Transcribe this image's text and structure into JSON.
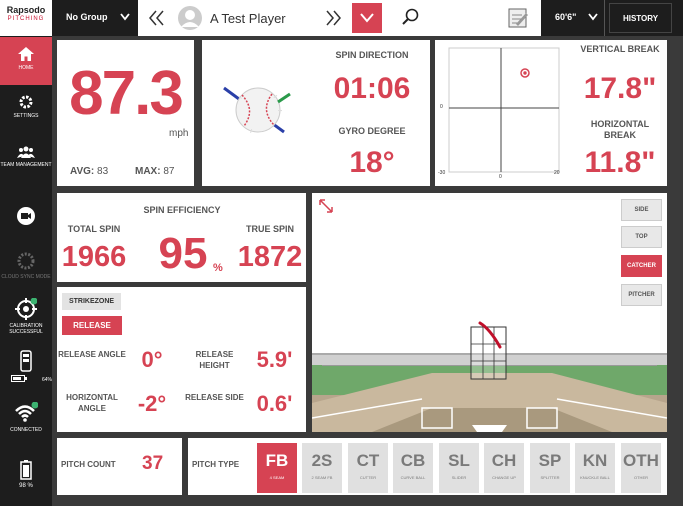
{
  "brand": {
    "name": "Rapsodo",
    "sub": "PITCHING"
  },
  "sidebar": {
    "items": [
      {
        "label": "HOME"
      },
      {
        "label": "SETTINGS"
      },
      {
        "label": "TEAM MANAGEMENT"
      },
      {
        "label": ""
      },
      {
        "label": "CLOUD SYNC MODE"
      },
      {
        "label": "CALIBRATION SUCCESSFUL"
      },
      {
        "label": "64%"
      },
      {
        "label": "CONNECTED"
      },
      {
        "label": "98 %"
      }
    ]
  },
  "topbar": {
    "group": "No Group",
    "player": "A Test Player",
    "height": "60'6\"",
    "history": "HISTORY"
  },
  "speed": {
    "value": "87.3",
    "unit": "mph",
    "avg_label": "AVG:",
    "avg": "83",
    "max_label": "MAX:",
    "max": "87"
  },
  "spin": {
    "direction_label": "SPIN DIRECTION",
    "direction": "01:06",
    "gyro_label": "GYRO DEGREE",
    "gyro": "18°"
  },
  "break": {
    "vertical_label": "VERTICAL BREAK",
    "vertical": "17.8\"",
    "horizontal_label": "HORIZONTAL BREAK",
    "horizontal": "11.8\"",
    "plot": {
      "y_zero": "0",
      "x_min": "-30",
      "x_zero": "0",
      "x_max": "20"
    }
  },
  "efficiency": {
    "title": "SPIN EFFICIENCY",
    "total_label": "TOTAL SPIN",
    "total": "1966",
    "value": "95",
    "unit": "%",
    "true_label": "TRUE SPIN",
    "true": "1872"
  },
  "release": {
    "tab_strike": "STRIKEZONE",
    "tab_release": "RELEASE",
    "angle_label": "RELEASE ANGLE",
    "angle": "0°",
    "height_label": "RELEASE HEIGHT",
    "height": "5.9'",
    "hangle_label": "HORIZONTAL ANGLE",
    "hangle": "-2°",
    "side_label": "RELEASE SIDE",
    "side": "0.6'"
  },
  "views": [
    "SIDE",
    "TOP",
    "CATCHER",
    "PITCHER"
  ],
  "pitch_count": {
    "label": "PITCH COUNT",
    "value": "37"
  },
  "pitch_type": {
    "label": "PITCH TYPE",
    "types": [
      {
        "code": "FB",
        "name": "4 SEAM"
      },
      {
        "code": "2S",
        "name": "2 SEAM FB"
      },
      {
        "code": "CT",
        "name": "CUTTER"
      },
      {
        "code": "CB",
        "name": "CURVE BALL"
      },
      {
        "code": "SL",
        "name": "SLIDER"
      },
      {
        "code": "CH",
        "name": "CHANGE UP"
      },
      {
        "code": "SP",
        "name": "SPLITTER"
      },
      {
        "code": "KN",
        "name": "KNUCKLE BALL"
      },
      {
        "code": "OTH",
        "name": "OTHER"
      }
    ]
  }
}
